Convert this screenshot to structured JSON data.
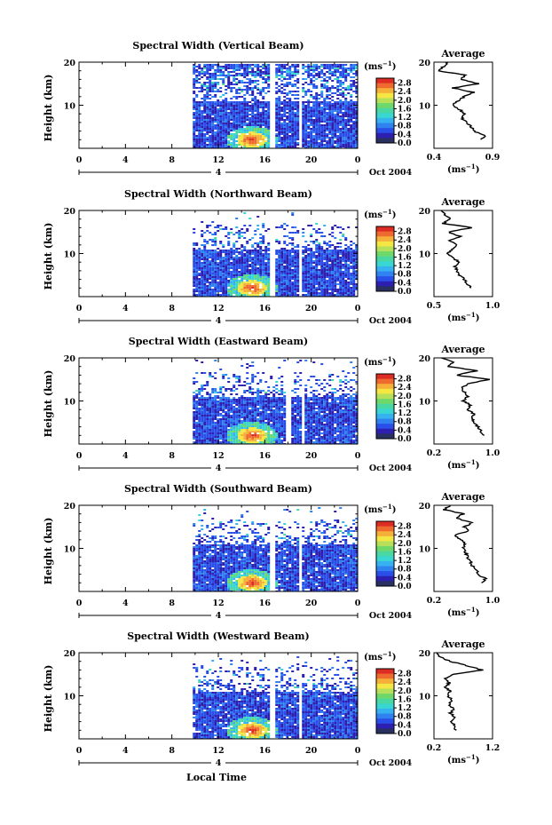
{
  "figure": {
    "xlabel": "Local Time",
    "date_label": "Oct 2004",
    "day_label": "4",
    "colorbar_unit": "(ms⁻¹)",
    "average_title": "Average",
    "average_xlabel": "(ms⁻¹)",
    "ylabel": "Height (km)"
  },
  "colors": {
    "colormap": [
      "#283060",
      "#2d1fb0",
      "#2a4fe8",
      "#2f82f0",
      "#35b2ef",
      "#39d6d2",
      "#49d7a2",
      "#6fd86b",
      "#b7e05a",
      "#f4e744",
      "#f5b03a",
      "#ef6a2f",
      "#dc2c23"
    ]
  },
  "chart_data": [
    {
      "type": "heatmap",
      "title": "Spectral Width (Vertical Beam)",
      "x_ticks": [
        "0",
        "4",
        "8",
        "12",
        "16",
        "20",
        "0"
      ],
      "y_ticks": [
        "20",
        "10"
      ],
      "ylim": [
        0,
        20
      ],
      "xlim": [
        0,
        24
      ],
      "colorbar_ticks": [
        "2.8",
        "2.4",
        "2.0",
        "1.6",
        "1.2",
        "0.8",
        "0.4",
        "0.0"
      ],
      "colorbar_range": [
        0.0,
        2.8
      ],
      "data_start_hour": 9.8,
      "data_gaps_hours": [
        [
          16.3,
          16.7
        ],
        [
          18.8,
          19.1
        ]
      ],
      "average": {
        "title": "Average",
        "xticks": [
          "0.4",
          "0.9"
        ],
        "xlim": [
          0.4,
          0.9
        ],
        "yticks": [
          "20",
          "10"
        ],
        "heights": [
          2,
          3,
          4,
          5,
          6,
          7,
          8,
          9,
          10,
          11,
          12,
          13,
          14,
          15,
          16,
          17,
          18,
          19,
          20
        ],
        "values": [
          0.8,
          0.84,
          0.74,
          0.72,
          0.68,
          0.64,
          0.66,
          0.62,
          0.56,
          0.6,
          0.66,
          0.74,
          0.56,
          0.78,
          0.63,
          0.66,
          0.44,
          0.48,
          0.52
        ]
      }
    },
    {
      "type": "heatmap",
      "title": "Spectral Width (Northward Beam)",
      "x_ticks": [
        "0",
        "4",
        "8",
        "12",
        "16",
        "20",
        "0"
      ],
      "y_ticks": [
        "20",
        "10"
      ],
      "ylim": [
        0,
        20
      ],
      "xlim": [
        0,
        24
      ],
      "colorbar_ticks": [
        "2.8",
        "2.4",
        "2.0",
        "1.6",
        "1.2",
        "0.8",
        "0.4",
        "0.0"
      ],
      "colorbar_range": [
        0.0,
        2.8
      ],
      "data_start_hour": 9.8,
      "data_gaps_hours": [
        [
          16.3,
          16.7
        ],
        [
          18.8,
          19.1
        ]
      ],
      "average": {
        "title": "Average",
        "xticks": [
          "0.5",
          "1.0"
        ],
        "xlim": [
          0.5,
          1.0
        ],
        "yticks": [
          "20",
          "10"
        ],
        "heights": [
          2,
          3,
          4,
          5,
          6,
          7,
          8,
          9,
          10,
          11,
          12,
          13,
          14,
          15,
          16,
          17,
          18,
          19,
          20
        ],
        "values": [
          0.82,
          0.78,
          0.76,
          0.72,
          0.7,
          0.68,
          0.72,
          0.66,
          0.62,
          0.66,
          0.7,
          0.64,
          0.72,
          0.62,
          0.82,
          0.58,
          0.64,
          0.6,
          0.56
        ]
      }
    },
    {
      "type": "heatmap",
      "title": "Spectral Width (Eastward Beam)",
      "x_ticks": [
        "0",
        "4",
        "8",
        "12",
        "16",
        "20",
        "0"
      ],
      "y_ticks": [
        "20",
        "10"
      ],
      "ylim": [
        0,
        20
      ],
      "xlim": [
        0,
        24
      ],
      "colorbar_ticks": [
        "2.8",
        "2.4",
        "2.0",
        "1.6",
        "1.2",
        "0.8",
        "0.4",
        "0.0"
      ],
      "colorbar_range": [
        0.0,
        2.8
      ],
      "data_start_hour": 9.8,
      "data_gaps_hours": [
        [
          17.8,
          18.2
        ],
        [
          19.0,
          19.3
        ]
      ],
      "average": {
        "title": "Average",
        "xticks": [
          "0.2",
          "1.0"
        ],
        "xlim": [
          0.2,
          1.0
        ],
        "yticks": [
          "20",
          "10"
        ],
        "heights": [
          2,
          3,
          4,
          5,
          6,
          7,
          8,
          9,
          10,
          11,
          12,
          13,
          14,
          15,
          16,
          17,
          18,
          19,
          20
        ],
        "values": [
          0.88,
          0.84,
          0.8,
          0.76,
          0.72,
          0.74,
          0.66,
          0.7,
          0.6,
          0.66,
          0.62,
          0.58,
          0.66,
          0.96,
          0.5,
          0.78,
          0.4,
          0.46,
          0.3
        ]
      }
    },
    {
      "type": "heatmap",
      "title": "Spectral Width (Southward Beam)",
      "x_ticks": [
        "0",
        "4",
        "8",
        "12",
        "16",
        "20",
        "0"
      ],
      "y_ticks": [
        "20",
        "10"
      ],
      "ylim": [
        0,
        20
      ],
      "xlim": [
        0,
        24
      ],
      "colorbar_ticks": [
        "2.8",
        "2.4",
        "2.0",
        "1.6",
        "1.2",
        "0.8",
        "0.4",
        "0.0"
      ],
      "colorbar_range": [
        0.0,
        2.8
      ],
      "data_start_hour": 9.8,
      "data_gaps_hours": [
        [
          16.3,
          16.7
        ],
        [
          18.8,
          19.1
        ]
      ],
      "average": {
        "title": "Average",
        "xticks": [
          "0.2",
          "1.0"
        ],
        "xlim": [
          0.2,
          1.0
        ],
        "yticks": [
          "20",
          "10"
        ],
        "heights": [
          2,
          3,
          4,
          5,
          6,
          7,
          8,
          9,
          10,
          11,
          12,
          13,
          14,
          15,
          16,
          17,
          18,
          19,
          20
        ],
        "values": [
          0.86,
          0.9,
          0.8,
          0.78,
          0.72,
          0.7,
          0.66,
          0.64,
          0.6,
          0.62,
          0.58,
          0.48,
          0.66,
          0.62,
          0.72,
          0.5,
          0.6,
          0.34,
          0.42
        ]
      }
    },
    {
      "type": "heatmap",
      "title": "Spectral Width (Westward Beam)",
      "x_ticks": [
        "0",
        "4",
        "8",
        "12",
        "16",
        "20",
        "0"
      ],
      "y_ticks": [
        "20",
        "10"
      ],
      "ylim": [
        0,
        20
      ],
      "xlim": [
        0,
        24
      ],
      "colorbar_ticks": [
        "2.8",
        "2.4",
        "2.0",
        "1.6",
        "1.2",
        "0.8",
        "0.4",
        "0.0"
      ],
      "colorbar_range": [
        0.0,
        2.8
      ],
      "data_start_hour": 9.8,
      "data_gaps_hours": [
        [
          16.3,
          16.7
        ],
        [
          18.8,
          19.1
        ]
      ],
      "average": {
        "title": "Average",
        "xticks": [
          "0.2",
          "1.2"
        ],
        "xlim": [
          0.2,
          1.2
        ],
        "yticks": [
          "20",
          "10"
        ],
        "heights": [
          2,
          3,
          4,
          5,
          6,
          7,
          8,
          9,
          10,
          11,
          12,
          13,
          14,
          15,
          16,
          17,
          18,
          19,
          20
        ],
        "values": [
          0.58,
          0.56,
          0.5,
          0.56,
          0.48,
          0.54,
          0.46,
          0.5,
          0.44,
          0.48,
          0.4,
          0.46,
          0.4,
          0.54,
          1.02,
          0.76,
          0.48,
          0.3,
          0.26
        ]
      }
    }
  ]
}
